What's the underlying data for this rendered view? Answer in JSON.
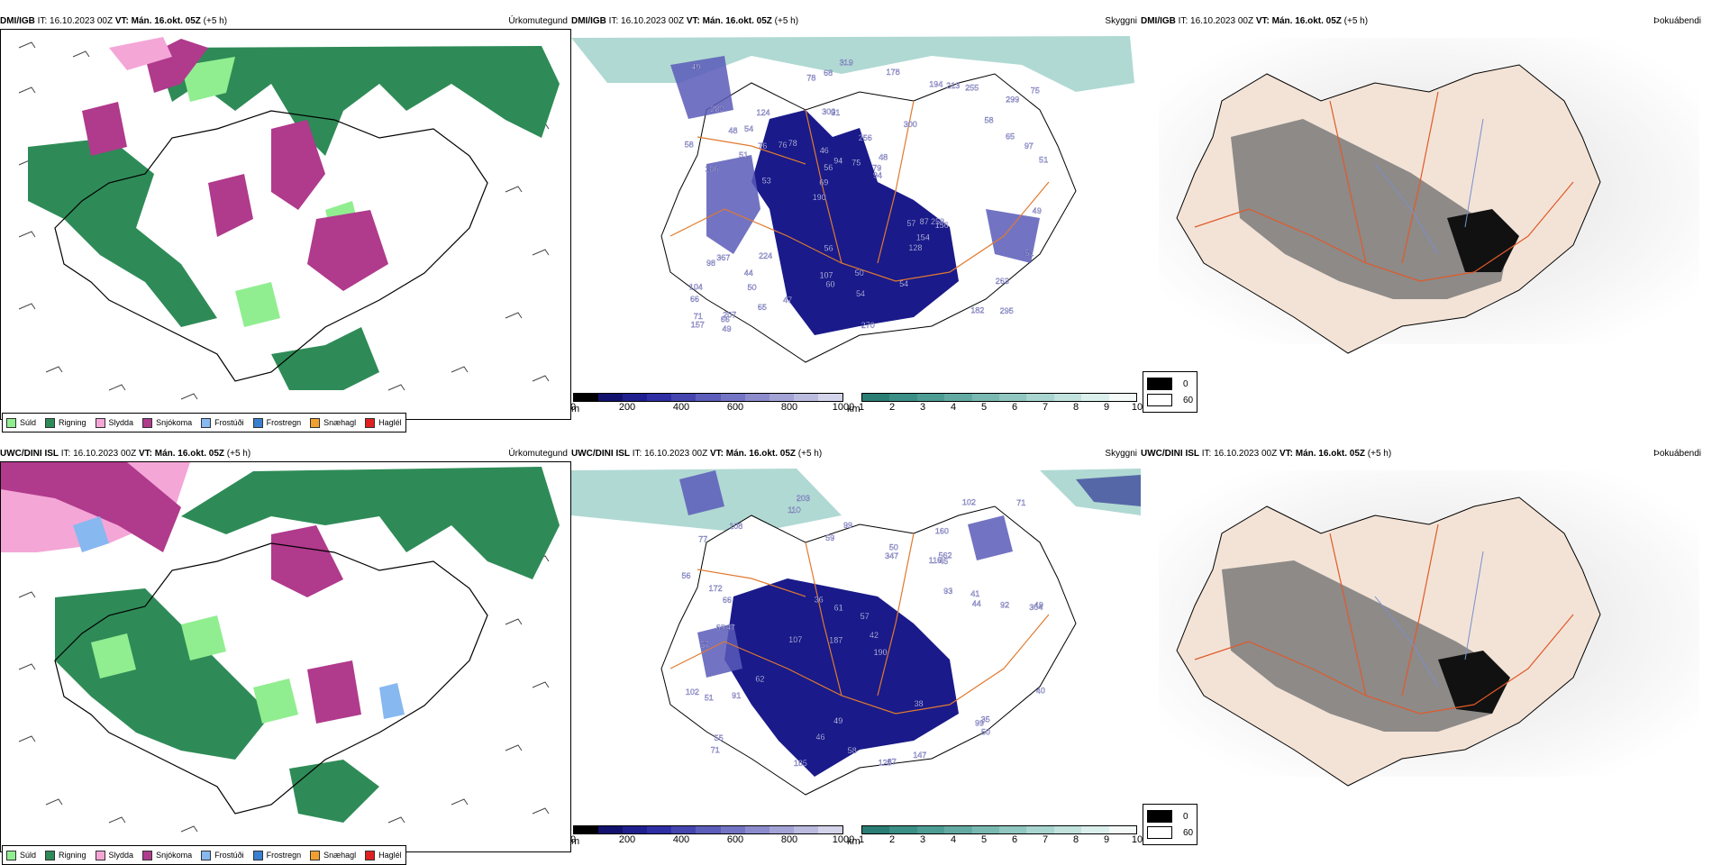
{
  "colors": {
    "sea": "#ffffff",
    "rain": "#2e8b57",
    "drizzle": "#90ee90",
    "sleet": "#f4a6d7",
    "snow": "#b03a8c",
    "freezing_drizzle": "#87b8f0",
    "freezing_rain": "#3a7fd0",
    "snow_pellets": "#f0a030",
    "hail": "#e02020",
    "road": "#e07a2f",
    "coast": "#000000",
    "vis_low": "#1a1a8a",
    "vis_mid": "#5a5ab8",
    "cloud_teal": "#3a8f86",
    "fog_dark": "#111111",
    "land_beige": "#f3e3d6"
  },
  "rows": [
    {
      "source": "DMI/IGB",
      "it_label": "IT: 16.10.2023 00Z",
      "vt_label": "VT: Mán. 16.okt. 05Z",
      "lead": "(+5 h)",
      "precip_title": "Úrkomutegund",
      "vis_title": "Skyggni",
      "fog_title": "Þokuábendi",
      "vis_values": [
        "295",
        "106",
        "299",
        "190",
        "300",
        "207",
        "300",
        "256",
        "367",
        "78",
        "66",
        "50",
        "31",
        "48",
        "156",
        "283",
        "68",
        "51",
        "57",
        "65",
        "69",
        "107",
        "56",
        "124",
        "194",
        "224",
        "182",
        "263",
        "259",
        "270",
        "76",
        "51",
        "128",
        "65",
        "97",
        "79",
        "71",
        "60",
        "94",
        "98",
        "58",
        "75",
        "154",
        "54",
        "44",
        "49",
        "157",
        "50",
        "255",
        "319",
        "53",
        "58",
        "54",
        "213",
        "66",
        "178",
        "78",
        "94",
        "51",
        "56",
        "47",
        "87",
        "76",
        "104",
        "49",
        "48",
        "49",
        "46",
        "54",
        "75"
      ]
    },
    {
      "source": "UWC/DINI ISL",
      "it_label": "IT: 16.10.2023 00Z",
      "vt_label": "VT: Mán. 16.okt. 05Z",
      "lead": "(+5 h)",
      "precip_title": "Úrkomutegund",
      "vis_title": "Skyggni",
      "fog_title": "Þokuábendi",
      "vis_values": [
        "203",
        "160",
        "304",
        "187",
        "190",
        "47",
        "77",
        "116",
        "57",
        "347",
        "57",
        "71",
        "110",
        "107",
        "125",
        "87",
        "49",
        "102",
        "93",
        "62",
        "66",
        "69",
        "49",
        "92",
        "102",
        "172",
        "61",
        "44",
        "35",
        "51",
        "99",
        "50",
        "91",
        "36",
        "38",
        "40",
        "41",
        "46",
        "71",
        "99",
        "55",
        "185",
        "147",
        "108",
        "58",
        "45",
        "50",
        "562",
        "56",
        "42",
        "59"
      ]
    }
  ],
  "precip_legend": [
    {
      "label": "Súld",
      "color": "#90ee90"
    },
    {
      "label": "Rigning",
      "color": "#2e8b57"
    },
    {
      "label": "Slydda",
      "color": "#f4a6d7"
    },
    {
      "label": "Snjókoma",
      "color": "#b03a8c"
    },
    {
      "label": "Frostúði",
      "color": "#87b8f0"
    },
    {
      "label": "Frostregn",
      "color": "#3a7fd0"
    },
    {
      "label": "Snæhagl",
      "color": "#f0a030"
    },
    {
      "label": "Haglél",
      "color": "#e02020"
    }
  ],
  "vis_m_scale": {
    "unit": "m",
    "ticks": [
      "0",
      "200",
      "400",
      "600",
      "800",
      "1000"
    ],
    "colors": [
      "#000000",
      "#12126e",
      "#1f1f8f",
      "#2e2ea5",
      "#4545b0",
      "#5d5dbb",
      "#7474c4",
      "#8c8ccd",
      "#a3a3d6",
      "#bbbbe0",
      "#d3d3ea"
    ]
  },
  "vis_km_scale": {
    "unit": "km",
    "ticks": [
      "1",
      "2",
      "3",
      "4",
      "5",
      "6",
      "7",
      "8",
      "9",
      "10"
    ],
    "colors": [
      "#2a7d74",
      "#3a8f86",
      "#4e9d94",
      "#63aba2",
      "#79b9b1",
      "#90c7c0",
      "#a8d5cf",
      "#c1e2dd",
      "#dbefec",
      "#f3faf8"
    ]
  },
  "fog_legend": [
    {
      "label": "0",
      "color": "#000000"
    },
    {
      "label": "60",
      "color": "#ffffff"
    }
  ]
}
